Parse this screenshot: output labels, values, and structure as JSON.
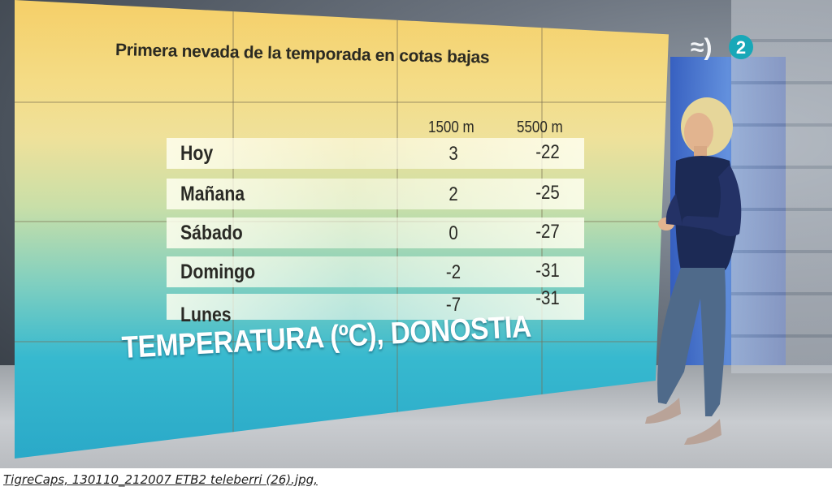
{
  "board": {
    "caption": "Primera nevada de la temporada en cotas bajas",
    "columns": [
      "1500 m",
      "5500 m"
    ],
    "rows": [
      {
        "day": "Hoy",
        "v1500": "3",
        "v5500": "-22"
      },
      {
        "day": "Mañana",
        "v1500": "2",
        "v5500": "-25"
      },
      {
        "day": "Sábado",
        "v1500": "0",
        "v5500": "-27"
      },
      {
        "day": "Domingo",
        "v1500": "-2",
        "v5500": "-31"
      },
      {
        "day": "Lunes",
        "v1500": "-7",
        "v5500": "-31"
      }
    ],
    "title": "TEMPERATURA (ºC), DONOSTIA"
  },
  "channel": {
    "logo_digit": "2"
  },
  "credit": "TigreCaps, 130110_212007 ETB2 teleberri (26).jpg,"
}
